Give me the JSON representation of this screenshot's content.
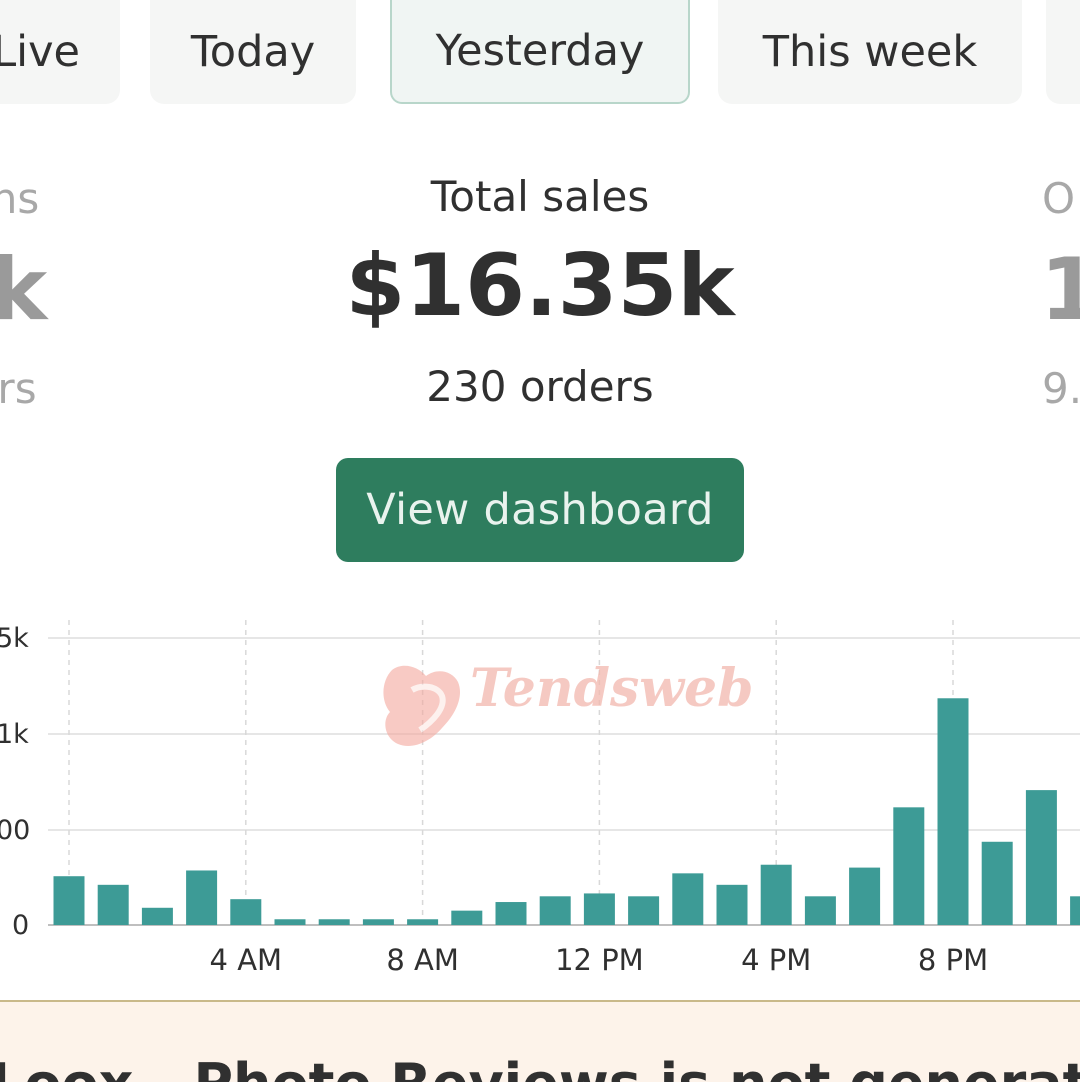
{
  "tabs": [
    {
      "label": "Live"
    },
    {
      "label": "Today"
    },
    {
      "label": "Yesterday",
      "active": true
    },
    {
      "label": "This week"
    }
  ],
  "stats": {
    "left": {
      "title_fragment": "ns",
      "value_fragment": "k",
      "sub_fragment": "rs"
    },
    "center": {
      "title": "Total sales",
      "value": "$16.35k",
      "sub": "230 orders"
    },
    "right": {
      "title_fragment": "O",
      "value_fragment": "1",
      "sub_fragment": "9."
    }
  },
  "button": {
    "label": "View dashboard"
  },
  "watermark": {
    "text": "Tendsweb"
  },
  "chart_data": {
    "type": "bar",
    "color": "#3d9b96",
    "y_tick_labels": [
      "5k",
      "1k",
      "00",
      "0"
    ],
    "x_tick_labels": [
      "4 AM",
      "8 AM",
      "12 PM",
      "4 PM",
      "8 PM"
    ],
    "x_unit": "hour-index",
    "x_tick_positions": [
      4,
      8,
      12,
      16,
      20
    ],
    "values_fraction_of_top_gridline": [
      0.17,
      0.14,
      0.06,
      0.19,
      0.09,
      0.02,
      0.02,
      0.02,
      0.02,
      0.05,
      0.08,
      0.1,
      0.11,
      0.1,
      0.18,
      0.14,
      0.21,
      0.1,
      0.2,
      0.41,
      0.79,
      0.29,
      0.47,
      0.1
    ]
  },
  "banner": {
    "text": "Loox - Photo Reviews is not generating"
  }
}
